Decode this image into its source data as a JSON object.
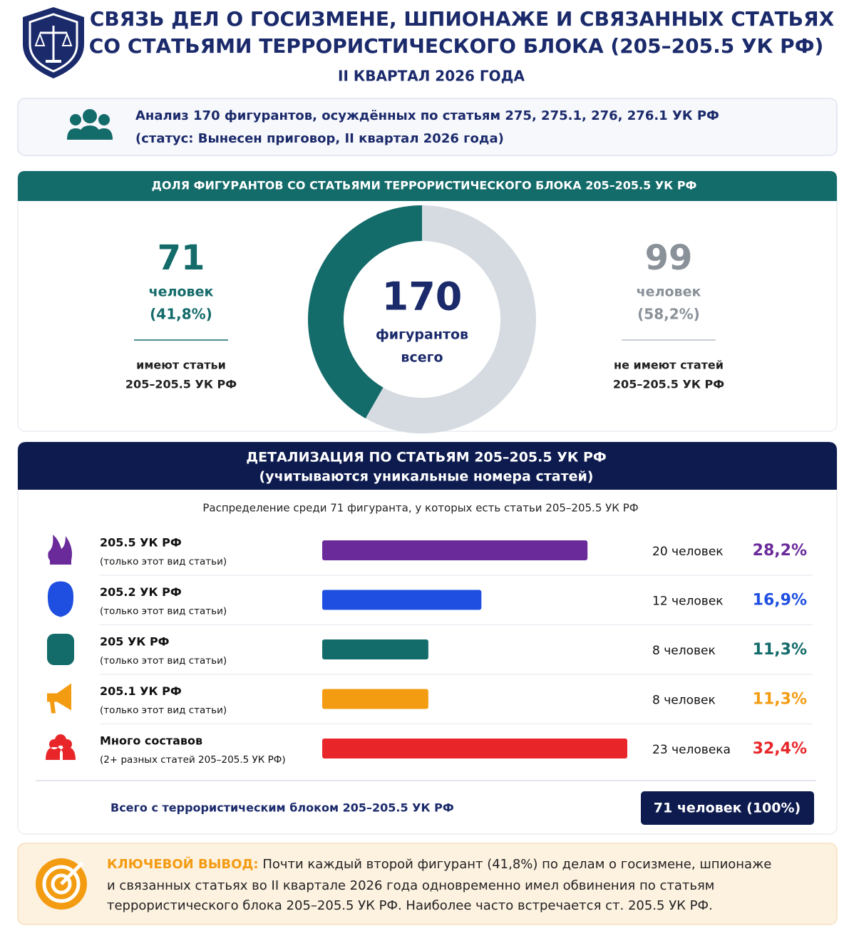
{
  "header": {
    "title_line1": "СВЯЗЬ ДЕЛ О ГОСИЗМЕНЕ, ШПИОНАЖЕ И СВЯЗАННЫХ СТАТЬЯХ",
    "title_line2": "СО СТАТЬЯМИ ТЕРРОРИСТИЧЕСКОГО БЛОКА (205–205.5 УК РФ)",
    "subtitle": "II КВАРТАЛ 2026 ГОДА"
  },
  "intro": {
    "line1": "Анализ 170 фигурантов, осуждённых по статьям 275, 275.1, 276, 276.1 УК РФ",
    "line2": "(статус: Вынесен приговор, II квартал 2026 года)"
  },
  "share": {
    "heading": "ДОЛЯ ФИГУРАНТОВ СО СТАТЬЯМИ ТЕРРОРИСТИЧЕСКОГО БЛОКА 205–205.5 УК РФ",
    "type": "donut",
    "total": 170,
    "total_caption1": "фигурантов",
    "total_caption2": "всего",
    "segments": [
      {
        "value": 71,
        "unit": "человек",
        "percent_label": "(41,8%)",
        "caption1": "имеют статьи",
        "caption2": "205–205.5 УК РФ",
        "color": "#136b6a"
      },
      {
        "value": 99,
        "unit": "человек",
        "percent_label": "(58,2%)",
        "caption1": "не имеют статей",
        "caption2": "205–205.5 УК РФ",
        "color": "#d5dbe1"
      }
    ]
  },
  "detail": {
    "heading1": "ДЕТАЛИЗАЦИЯ ПО СТАТЬЯМ 205–205.5 УК РФ",
    "heading2": "(учитываются уникальные номера статей)",
    "note": "Распределение среди 71 фигуранта, у которых есть статьи 205–205.5 УК РФ",
    "type": "bar",
    "rows": [
      {
        "name": "205.5 УК РФ",
        "sub": "(только этот вид статьи)",
        "count": 20,
        "count_label": "20 человек",
        "percent_label": "28,2%",
        "color": "#6a2a9a"
      },
      {
        "name": "205.2 УК РФ",
        "sub": "(только этот вид статьи)",
        "count": 12,
        "count_label": "12 человек",
        "percent_label": "16,9%",
        "color": "#1f4fe0"
      },
      {
        "name": "205 УК РФ",
        "sub": "(только этот вид статьи)",
        "count": 8,
        "count_label": "8 человек",
        "percent_label": "11,3%",
        "color": "#136b6a"
      },
      {
        "name": "205.1 УК РФ",
        "sub": "(только этот вид статьи)",
        "count": 8,
        "count_label": "8 человек",
        "percent_label": "11,3%",
        "color": "#f39c12"
      },
      {
        "name": "Много составов",
        "sub": "(2+ разных статей 205–205.5 УК РФ)",
        "count": 23,
        "count_label": "23 человека",
        "percent_label": "32,4%",
        "color": "#e8262a"
      }
    ],
    "total_label": "Всего с террористическим блоком 205–205.5 УК РФ",
    "total_value": "71 человек (100%)"
  },
  "conclusion": {
    "label": "КЛЮЧЕВОЙ ВЫВОД:",
    "line1": " Почти каждый второй фигурант (41,8%) по делам о госизмене, шпионаже",
    "line2": "и связанных статьях во II квартале 2026 года одновременно имел обвинения по статьям",
    "line3": "террористического блока 205–205.5 УК РФ. Наиболее часто встречается ст. 205.5 УК РФ."
  }
}
